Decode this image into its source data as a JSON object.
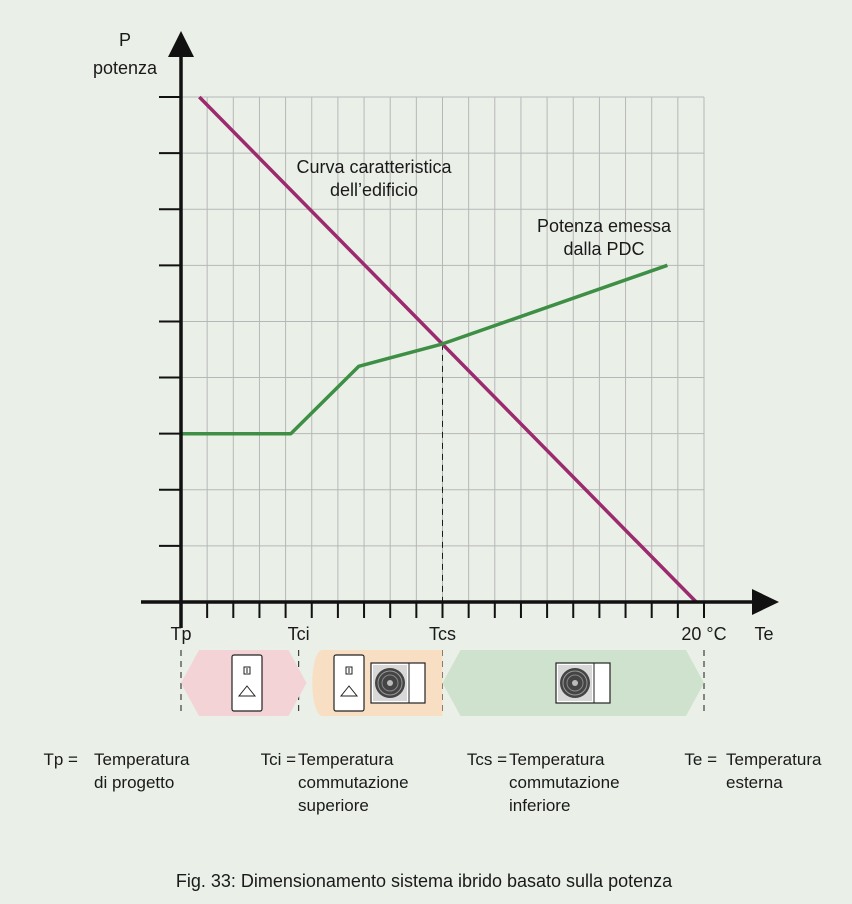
{
  "chart_data": {
    "type": "line",
    "y_axis": {
      "symbol": "P",
      "label": "potenza"
    },
    "x_axis": {
      "symbol": "Te",
      "tick_labels": [
        {
          "text": "Tp",
          "x": 0
        },
        {
          "text": "Tci",
          "x": 4.5
        },
        {
          "text": "Tcs",
          "x": 10
        },
        {
          "text": "20 °C",
          "x": 20
        }
      ]
    },
    "xlim": [
      0,
      20
    ],
    "ylim": [
      0,
      9
    ],
    "grid": true,
    "series": [
      {
        "name": "Curva caratteristica dell'edificio",
        "label_lines": [
          "Curva caratteristica",
          "dell’edificio"
        ],
        "color": "#9b2a6e",
        "points": [
          [
            0.7,
            9
          ],
          [
            19.7,
            0
          ]
        ]
      },
      {
        "name": "Potenza emessa dalla PDC",
        "label_lines": [
          "Potenza emessa",
          "dalla PDC"
        ],
        "color": "#3e8f45",
        "points": [
          [
            0,
            3
          ],
          [
            4.2,
            3
          ],
          [
            6.8,
            4.2
          ],
          [
            10,
            4.6
          ],
          [
            18.6,
            6
          ]
        ]
      }
    ],
    "switch_marker_x": 10,
    "zones": [
      {
        "name": "boiler-only",
        "color": "#f3d3d6",
        "devices": [
          "boiler-icon"
        ]
      },
      {
        "name": "hybrid",
        "color": "#f8dfc4",
        "devices": [
          "boiler-icon",
          "heat-pump-icon"
        ]
      },
      {
        "name": "heat-pump-only",
        "color": "#cfe2cd",
        "devices": [
          "heat-pump-icon"
        ]
      }
    ]
  },
  "legend": [
    {
      "key": "Tp =",
      "lines": [
        "Temperatura",
        "di progetto"
      ]
    },
    {
      "key": "Tci =",
      "lines": [
        "Temperatura",
        "commutazione",
        "superiore"
      ]
    },
    {
      "key": "Tcs =",
      "lines": [
        "Temperatura",
        "commutazione",
        "inferiore"
      ]
    },
    {
      "key": "Te =",
      "lines": [
        "Temperatura",
        "esterna"
      ]
    }
  ],
  "caption": "Fig. 33:  Dimensionamento sistema ibrido basato sulla potenza"
}
